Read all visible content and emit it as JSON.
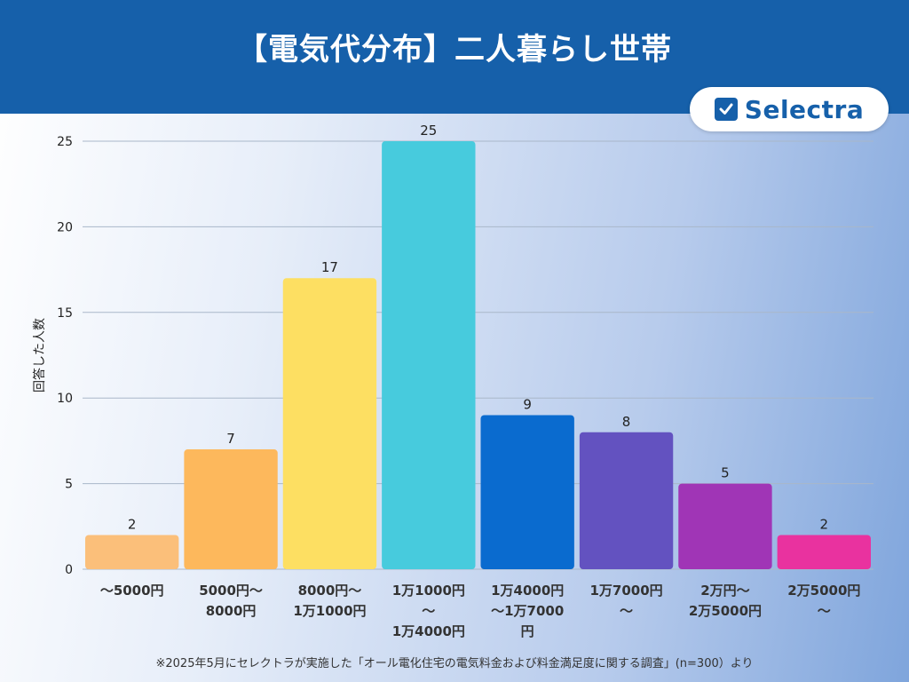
{
  "header": {
    "title": "【電気代分布】二人暮らし世帯",
    "logo_text": "Selectra",
    "logo_icon": "checkbox-icon"
  },
  "footnote": "※2025年5月にセレクトラが実施した「オール電化住宅の電気料金および料金満足度に関する調査」(n=300）より",
  "colors": {
    "header_bg": "#1660aa",
    "bars": [
      "#fbbf7a",
      "#fdb85c",
      "#fddf62",
      "#47cbdd",
      "#0a6bcf",
      "#6352c0",
      "#a035b6",
      "#e9329f"
    ]
  },
  "chart_data": {
    "type": "bar",
    "ylabel": "回答した人数",
    "xlabel": "",
    "ylim": [
      0,
      25
    ],
    "yticks": [
      0,
      5,
      10,
      15,
      20,
      25
    ],
    "grid": true,
    "categories": [
      [
        "～5000円"
      ],
      [
        "5000円～",
        "8000円"
      ],
      [
        "8000円～",
        "1万1000円"
      ],
      [
        "1万1000円",
        "～",
        "1万4000円"
      ],
      [
        "1万4000円",
        "～1万7000",
        "円"
      ],
      [
        "1万7000円",
        "～"
      ],
      [
        "2万円～",
        "2万5000円"
      ],
      [
        "2万5000円",
        "～"
      ]
    ],
    "values": [
      2,
      7,
      17,
      25,
      9,
      8,
      5,
      2
    ]
  }
}
